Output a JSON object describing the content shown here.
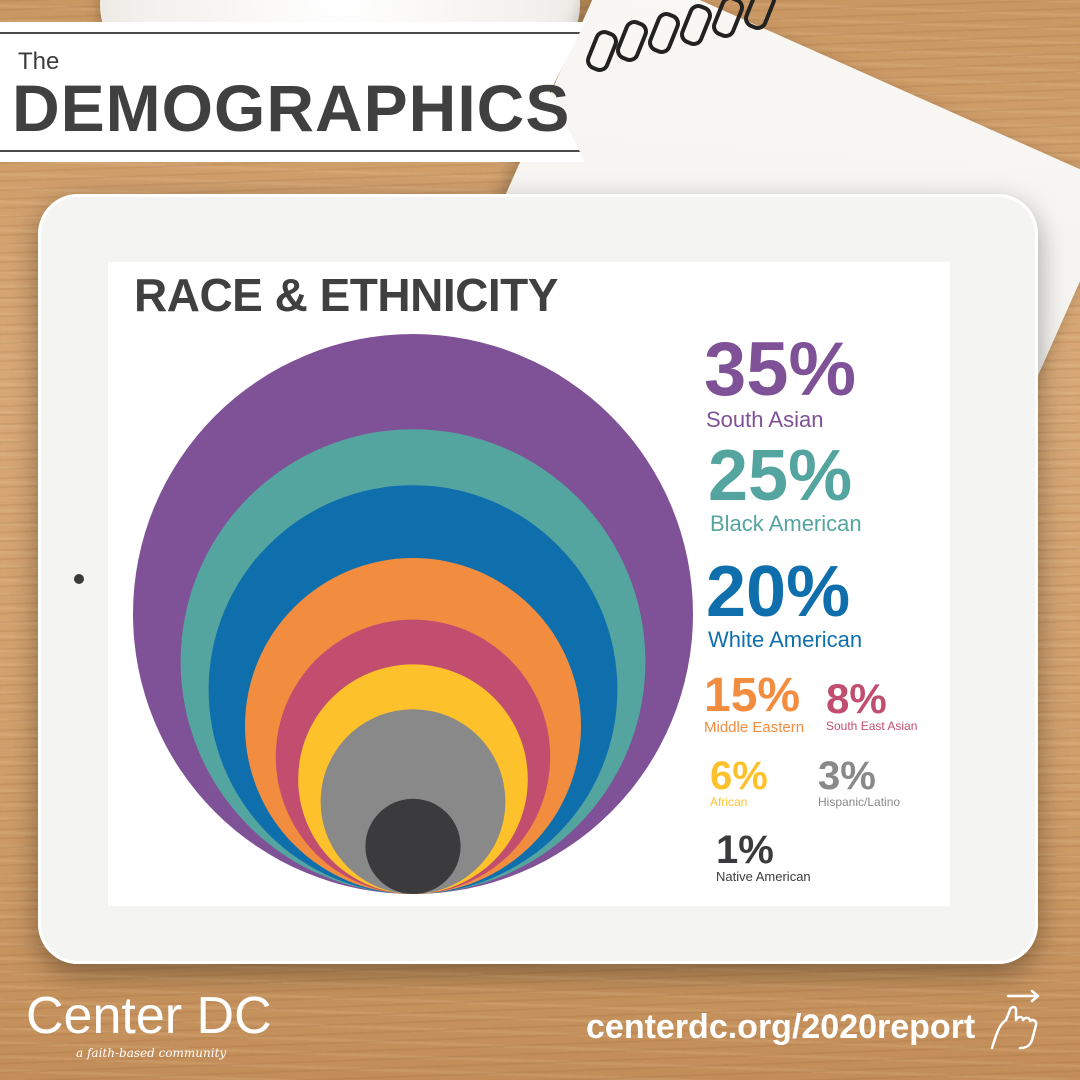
{
  "header": {
    "small_title": "The",
    "big_title": "DEMOGRAPHICS"
  },
  "chart_data": {
    "type": "nested-circles",
    "title": "RACE & ETHNICITY",
    "categories": [
      "South Asian",
      "Black American",
      "White American",
      "Middle Eastern",
      "South East Asian",
      "African",
      "Hispanic/Latino",
      "Native American"
    ],
    "values": [
      35,
      25,
      20,
      15,
      8,
      6,
      3,
      1
    ],
    "labels": [
      "35%",
      "25%",
      "20%",
      "15%",
      "8%",
      "6%",
      "3%",
      "1%"
    ],
    "colors": [
      "#7f5197",
      "#54a4a0",
      "#0f6fad",
      "#f28c3f",
      "#c14e6e",
      "#fdc22b",
      "#898989",
      "#3b3b3d"
    ]
  },
  "footer": {
    "brand": "Center DC",
    "tagline": "a faith-based community",
    "url": "centerdc.org/2020report"
  }
}
